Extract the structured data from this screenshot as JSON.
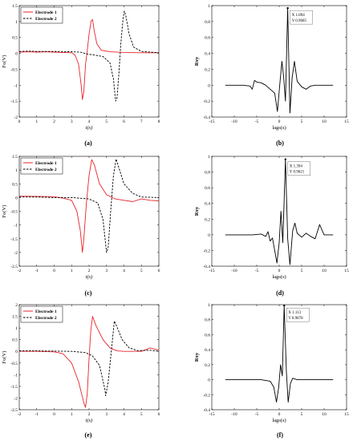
{
  "panel_labels": [
    "(a)",
    "(b)",
    "(c)",
    "(d)",
    "(e)",
    "(f)"
  ],
  "legend_entries": [
    "Electrode 1",
    "Electrode 2"
  ],
  "colors": {
    "electrode1": "#e8242a",
    "electrode2": "#000000",
    "xcorr": "#000000"
  },
  "chart_data": [
    {
      "id": "a",
      "type": "line",
      "xlabel": "t(s)",
      "ylabel": "Fo(V)",
      "xlim": [
        0,
        8
      ],
      "ylim": [
        -2,
        1.5
      ],
      "xticks": [
        0,
        1,
        2,
        3,
        4,
        5,
        6,
        7,
        8
      ],
      "yticks": [
        -2,
        -1.5,
        -1,
        -0.5,
        0,
        0.5,
        1,
        1.5
      ],
      "grid": false,
      "legend": "top-left",
      "series": [
        {
          "name": "Electrode 1",
          "style": "solid",
          "color": "#e8242a",
          "points": [
            [
              0,
              0.04
            ],
            [
              0.5,
              0.05
            ],
            [
              1,
              0.04
            ],
            [
              1.5,
              0.05
            ],
            [
              2,
              0.04
            ],
            [
              2.5,
              0.03
            ],
            [
              3,
              0.02
            ],
            [
              3.2,
              -0.05
            ],
            [
              3.4,
              -0.35
            ],
            [
              3.55,
              -1.0
            ],
            [
              3.62,
              -1.45
            ],
            [
              3.7,
              -1.2
            ],
            [
              3.8,
              -0.35
            ],
            [
              3.9,
              0.1
            ],
            [
              4.0,
              0.6
            ],
            [
              4.12,
              1.02
            ],
            [
              4.2,
              1.06
            ],
            [
              4.3,
              0.7
            ],
            [
              4.45,
              0.3
            ],
            [
              4.7,
              0.1
            ],
            [
              5.2,
              0.05
            ],
            [
              6,
              0.03
            ],
            [
              7,
              0.02
            ],
            [
              8,
              0.02
            ]
          ]
        },
        {
          "name": "Electrode 2",
          "style": "dashed",
          "color": "#000000",
          "points": [
            [
              0,
              0.06
            ],
            [
              0.5,
              0.07
            ],
            [
              1,
              0.06
            ],
            [
              2,
              0.06
            ],
            [
              3,
              0.05
            ],
            [
              3.5,
              0.04
            ],
            [
              3.9,
              -0.02
            ],
            [
              4.3,
              -0.05
            ],
            [
              4.8,
              -0.1
            ],
            [
              5.2,
              -0.3
            ],
            [
              5.4,
              -0.8
            ],
            [
              5.52,
              -1.5
            ],
            [
              5.6,
              -1.4
            ],
            [
              5.7,
              -0.7
            ],
            [
              5.82,
              0.3
            ],
            [
              5.95,
              1.1
            ],
            [
              6.02,
              1.33
            ],
            [
              6.1,
              1.2
            ],
            [
              6.3,
              0.6
            ],
            [
              6.55,
              0.2
            ],
            [
              7,
              0.06
            ],
            [
              8,
              0.02
            ]
          ]
        }
      ]
    },
    {
      "id": "b",
      "type": "line",
      "xlabel": "lags(s)",
      "ylabel": "Rxy",
      "xlim": [
        -15,
        15
      ],
      "ylim": [
        -0.4,
        1
      ],
      "xticks": [
        -15,
        -10,
        -5,
        0,
        5,
        10,
        15
      ],
      "yticks": [
        -0.4,
        -0.2,
        0,
        0.2,
        0.4,
        0.6,
        0.8,
        1
      ],
      "grid": false,
      "datatip": {
        "x": "1.894",
        "y": "0.9685",
        "x_label": "X",
        "y_label": "Y"
      },
      "series": [
        {
          "color": "#000000",
          "points": [
            [
              -12,
              0
            ],
            [
              -8,
              0
            ],
            [
              -6.5,
              -0.01
            ],
            [
              -6,
              -0.05
            ],
            [
              -5.5,
              0.06
            ],
            [
              -5,
              0.04
            ],
            [
              -4,
              0.03
            ],
            [
              -3,
              0
            ],
            [
              -2,
              -0.05
            ],
            [
              -1,
              -0.1
            ],
            [
              -0.4,
              -0.33
            ],
            [
              0.2,
              0.05
            ],
            [
              0.6,
              0.3
            ],
            [
              1,
              0.1
            ],
            [
              1.4,
              -0.2
            ],
            [
              1.894,
              0.9685
            ],
            [
              2.4,
              -0.35
            ],
            [
              2.9,
              0.1
            ],
            [
              3.4,
              0.3
            ],
            [
              4,
              0.05
            ],
            [
              5,
              -0.02
            ],
            [
              6,
              -0.05
            ],
            [
              7,
              -0.01
            ],
            [
              8,
              0
            ],
            [
              10,
              0
            ],
            [
              12,
              0
            ]
          ]
        }
      ]
    },
    {
      "id": "c",
      "type": "line",
      "xlabel": "t(s)",
      "ylabel": "Fo(V)",
      "xlim": [
        -2,
        6
      ],
      "ylim": [
        -2.5,
        1.5
      ],
      "xticks": [
        -2,
        -1,
        0,
        1,
        2,
        3,
        4,
        5,
        6
      ],
      "yticks": [
        -2.5,
        -2,
        -1.5,
        -1,
        -0.5,
        0,
        0.5,
        1,
        1.5
      ],
      "grid": false,
      "legend": "top-left",
      "series": [
        {
          "name": "Electrode 1",
          "style": "solid",
          "color": "#e8242a",
          "points": [
            [
              -2,
              0.05
            ],
            [
              -1,
              0.04
            ],
            [
              0,
              0.03
            ],
            [
              0.5,
              -0.02
            ],
            [
              1,
              -0.1
            ],
            [
              1.3,
              -0.5
            ],
            [
              1.5,
              -1.2
            ],
            [
              1.62,
              -2.0
            ],
            [
              1.7,
              -1.5
            ],
            [
              1.85,
              -0.2
            ],
            [
              2.0,
              0.8
            ],
            [
              2.15,
              1.38
            ],
            [
              2.3,
              1.2
            ],
            [
              2.6,
              0.5
            ],
            [
              3,
              0.1
            ],
            [
              3.5,
              -0.05
            ],
            [
              4,
              -0.1
            ],
            [
              4.5,
              -0.15
            ],
            [
              5,
              -0.05
            ],
            [
              5.5,
              -0.1
            ],
            [
              6,
              -0.12
            ]
          ]
        },
        {
          "name": "Electrode 2",
          "style": "dashed",
          "color": "#000000",
          "points": [
            [
              -2,
              0.02
            ],
            [
              -1,
              0.02
            ],
            [
              0,
              0
            ],
            [
              1,
              0
            ],
            [
              2,
              -0.05
            ],
            [
              2.5,
              -0.2
            ],
            [
              2.8,
              -0.8
            ],
            [
              3.0,
              -2.0
            ],
            [
              3.1,
              -1.8
            ],
            [
              3.25,
              -0.4
            ],
            [
              3.4,
              0.8
            ],
            [
              3.55,
              1.4
            ],
            [
              3.7,
              1.1
            ],
            [
              4,
              0.5
            ],
            [
              4.5,
              0.15
            ],
            [
              5,
              0.02
            ],
            [
              6,
              0
            ]
          ]
        }
      ]
    },
    {
      "id": "d",
      "type": "line",
      "xlabel": "lags(s)",
      "ylabel": "Rxy",
      "xlim": [
        -15,
        15
      ],
      "ylim": [
        -0.4,
        1
      ],
      "xticks": [
        -15,
        -10,
        -5,
        0,
        5,
        10,
        15
      ],
      "yticks": [
        -0.4,
        -0.2,
        0,
        0.2,
        0.4,
        0.6,
        0.8,
        1
      ],
      "grid": false,
      "datatip": {
        "x": "1.394",
        "y": "0.9621",
        "x_label": "X",
        "y_label": "Y"
      },
      "series": [
        {
          "color": "#000000",
          "points": [
            [
              -12,
              0
            ],
            [
              -6,
              0
            ],
            [
              -4,
              0.01
            ],
            [
              -3,
              -0.02
            ],
            [
              -2.5,
              0.04
            ],
            [
              -2,
              -0.08
            ],
            [
              -1.5,
              -0.04
            ],
            [
              -1,
              -0.2
            ],
            [
              -0.5,
              -0.36
            ],
            [
              0,
              -0.1
            ],
            [
              0.4,
              0.3
            ],
            [
              0.8,
              -0.1
            ],
            [
              1.394,
              0.9621
            ],
            [
              1.9,
              -0.05
            ],
            [
              2.4,
              -0.38
            ],
            [
              3,
              0.05
            ],
            [
              3.5,
              0.15
            ],
            [
              4,
              0.02
            ],
            [
              5,
              -0.03
            ],
            [
              6,
              0.02
            ],
            [
              7,
              -0.02
            ],
            [
              8,
              -0.05
            ],
            [
              9,
              0.13
            ],
            [
              9.6,
              0.05
            ],
            [
              10,
              0
            ],
            [
              12,
              0
            ]
          ]
        }
      ]
    },
    {
      "id": "e",
      "type": "line",
      "xlabel": "t(s)",
      "ylabel": "Fo(V)",
      "xlim": [
        -2,
        6
      ],
      "ylim": [
        -2.5,
        2
      ],
      "xticks": [
        -2,
        -1,
        0,
        1,
        2,
        3,
        4,
        5,
        6
      ],
      "yticks": [
        -2.5,
        -2,
        -1.5,
        -1,
        -0.5,
        0,
        0.5,
        1,
        1.5,
        2
      ],
      "grid": false,
      "legend": "top-left",
      "series": [
        {
          "name": "Electrode 1",
          "style": "solid",
          "color": "#e8242a",
          "points": [
            [
              -2,
              0
            ],
            [
              -1,
              0
            ],
            [
              0,
              -0.02
            ],
            [
              0.5,
              -0.1
            ],
            [
              1,
              -0.5
            ],
            [
              1.4,
              -1.3
            ],
            [
              1.7,
              -2.2
            ],
            [
              1.8,
              -2.4
            ],
            [
              1.9,
              -1.8
            ],
            [
              2.0,
              -0.3
            ],
            [
              2.1,
              0.9
            ],
            [
              2.2,
              1.5
            ],
            [
              2.4,
              1.1
            ],
            [
              2.8,
              0.5
            ],
            [
              3.2,
              0.15
            ],
            [
              3.6,
              0.02
            ],
            [
              4,
              0
            ],
            [
              5,
              0
            ],
            [
              5.5,
              0.15
            ],
            [
              6,
              0.05
            ]
          ]
        },
        {
          "name": "Electrode 2",
          "style": "dashed",
          "color": "#000000",
          "points": [
            [
              -2,
              0.02
            ],
            [
              -1,
              0.02
            ],
            [
              0,
              0.01
            ],
            [
              1,
              0
            ],
            [
              1.8,
              -0.05
            ],
            [
              2.2,
              -0.2
            ],
            [
              2.6,
              -0.6
            ],
            [
              2.9,
              -1.6
            ],
            [
              2.95,
              -1.9
            ],
            [
              3.1,
              -1.3
            ],
            [
              3.3,
              0.2
            ],
            [
              3.45,
              1.3
            ],
            [
              3.6,
              1.05
            ],
            [
              3.9,
              0.5
            ],
            [
              4.3,
              0.15
            ],
            [
              4.8,
              0.03
            ],
            [
              5.5,
              0.05
            ],
            [
              6,
              0
            ]
          ]
        }
      ]
    },
    {
      "id": "f",
      "type": "line",
      "xlabel": "lags(s)",
      "ylabel": "Rxy",
      "xlim": [
        -15,
        15
      ],
      "ylim": [
        -0.4,
        1
      ],
      "xticks": [
        -15,
        -10,
        -5,
        0,
        5,
        10,
        15
      ],
      "yticks": [
        -0.4,
        -0.2,
        0,
        0.2,
        0.4,
        0.6,
        0.8,
        1
      ],
      "grid": false,
      "datatip": {
        "x": "1.113",
        "y": "0.9878",
        "x_label": "X",
        "y_label": "Y"
      },
      "series": [
        {
          "color": "#000000",
          "points": [
            [
              -12,
              0
            ],
            [
              -6,
              0
            ],
            [
              -4,
              0
            ],
            [
              -2,
              -0.02
            ],
            [
              -1.2,
              -0.1
            ],
            [
              -0.6,
              -0.3
            ],
            [
              -0.1,
              -0.1
            ],
            [
              0.3,
              0.2
            ],
            [
              0.7,
              0.05
            ],
            [
              1.113,
              0.9878
            ],
            [
              1.6,
              0.1
            ],
            [
              2.0,
              -0.3
            ],
            [
              2.5,
              -0.05
            ],
            [
              3,
              0.02
            ],
            [
              4,
              0
            ],
            [
              6,
              0
            ],
            [
              8,
              0
            ],
            [
              12,
              0
            ]
          ]
        }
      ]
    }
  ]
}
